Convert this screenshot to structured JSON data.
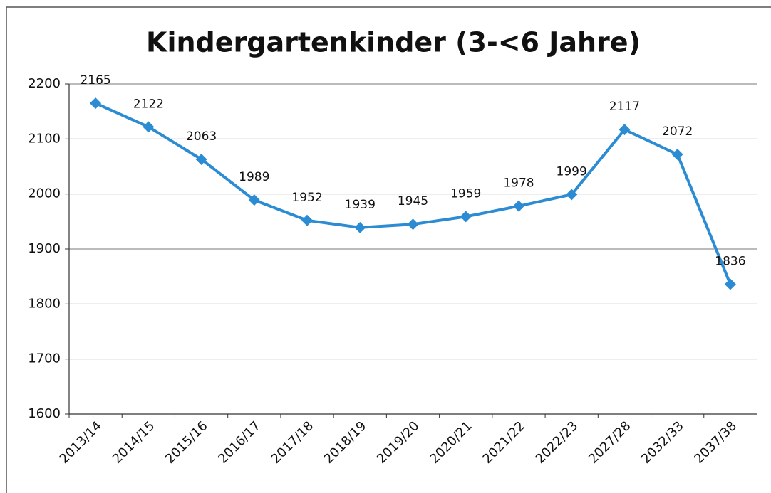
{
  "chart_data": {
    "type": "line",
    "title": "Kindergartenkinder (3-<6 Jahre)",
    "categories": [
      "2013/14",
      "2014/15",
      "2015/16",
      "2016/17",
      "2017/18",
      "2018/19",
      "2019/20",
      "2020/21",
      "2021/22",
      "2022/23",
      "2027/28",
      "2032/33",
      "2037/38"
    ],
    "values": [
      2165,
      2122,
      2063,
      1989,
      1952,
      1939,
      1945,
      1959,
      1978,
      1999,
      2117,
      2072,
      1836
    ],
    "color": "#2b8bd3",
    "ylim": [
      1600,
      2200
    ],
    "yticks": [
      1600,
      1700,
      1800,
      1900,
      2000,
      2100,
      2200
    ],
    "grid": true
  }
}
